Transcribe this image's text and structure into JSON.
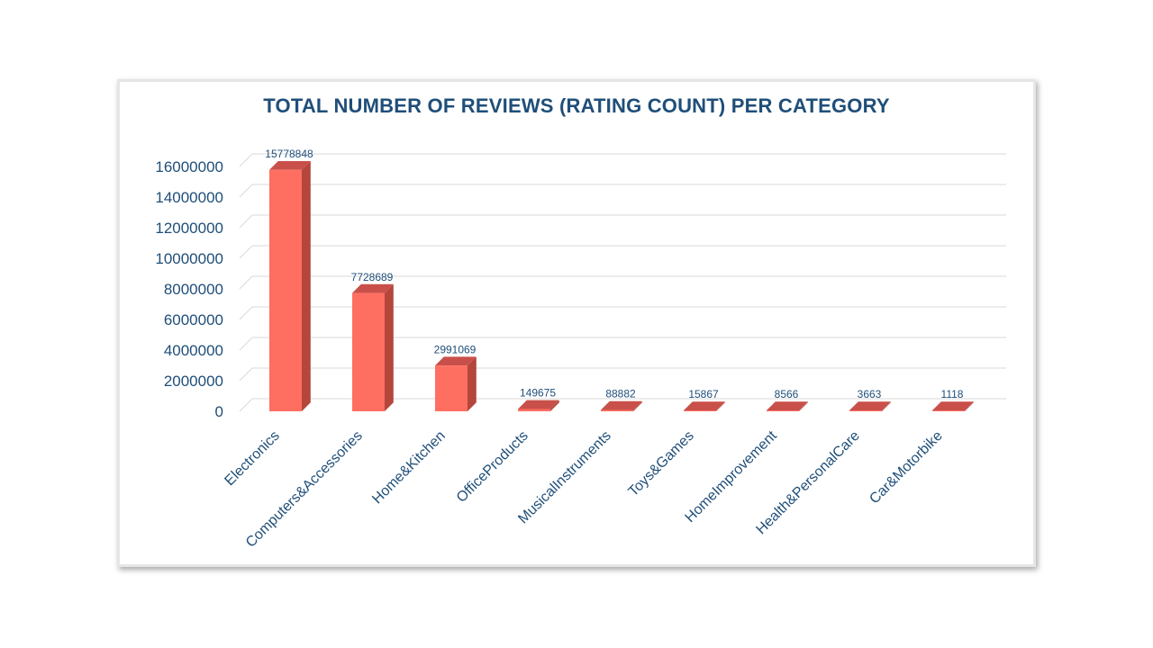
{
  "chart_data": {
    "type": "bar",
    "title": "TOTAL NUMBER OF REVIEWS (RATING COUNT) PER CATEGORY",
    "xlabel": "",
    "ylabel": "",
    "categories": [
      "Electronics",
      "Computers&Accessories",
      "Home&Kitchen",
      "OfficeProducts",
      "MusicalInstruments",
      "Toys&Games",
      "HomeImprovement",
      "Health&PersonalCare",
      "Car&Motorbike"
    ],
    "values": [
      15778848,
      7728689,
      2991069,
      149675,
      88882,
      15867,
      8566,
      3663,
      1118
    ],
    "ylim": [
      0,
      16000000
    ],
    "yticks": [
      0,
      2000000,
      4000000,
      6000000,
      8000000,
      10000000,
      12000000,
      14000000,
      16000000
    ],
    "grid": true,
    "legend": "none",
    "style": "3d-column",
    "colors": {
      "bar_front": "#ff6f61",
      "bar_side": "#b4463c",
      "bar_top": "#c9504a",
      "title": "#1f4e79",
      "axis_text": "#1f4e79",
      "data_label": "#1f4e79",
      "grid": "#d9d9d9"
    }
  }
}
